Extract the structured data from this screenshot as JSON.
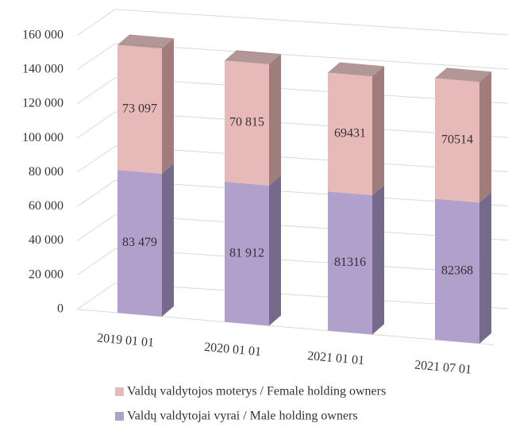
{
  "chart_data": {
    "type": "bar3d_stacked",
    "categories": [
      "2019 01 01",
      "2020 01 01",
      "2021 01 01",
      "2021 07 01"
    ],
    "series": [
      {
        "name": "Valdų valdytojai vyrai / Male holding owners",
        "color": "#b0a0cb",
        "side_color": "#766a8c",
        "values": [
          83479,
          81912,
          81316,
          82368
        ],
        "value_labels": [
          "83 479",
          "81 912",
          "81316",
          "82368"
        ]
      },
      {
        "name": "Valdų valdytojos moterys / Female holding owners",
        "color": "#e8b9b9",
        "side_color": "#a07c7c",
        "values": [
          73097,
          70815,
          69431,
          70514
        ],
        "value_labels": [
          "73 097",
          "70 815",
          "69431",
          "70514"
        ]
      }
    ],
    "ylim": [
      0,
      160000
    ],
    "yticks": [
      0,
      {
        "value": 20000,
        "label": "20 000"
      },
      {
        "value": 40000,
        "label": "40 000"
      },
      {
        "value": 60000,
        "label": "60 000"
      },
      {
        "value": 80000,
        "label": "80 000"
      },
      {
        "value": 100000,
        "label": "100 000"
      },
      {
        "value": 120000,
        "label": "120 000"
      },
      {
        "value": 140000,
        "label": "140 000"
      },
      {
        "value": 160000,
        "label": "160 000"
      }
    ],
    "grid": true
  }
}
